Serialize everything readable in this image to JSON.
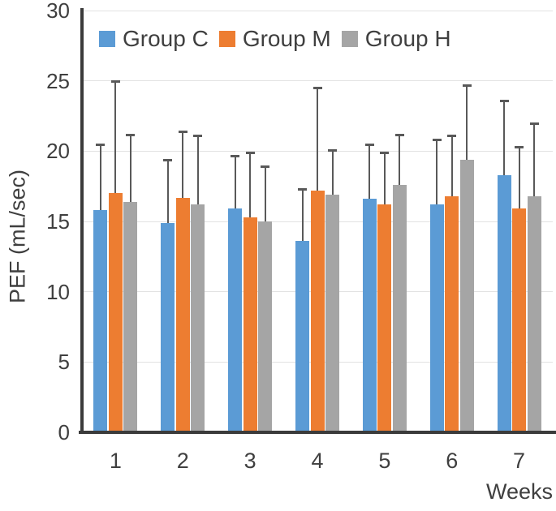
{
  "chart_data": {
    "type": "bar",
    "title": "",
    "xlabel": "Weeks",
    "ylabel": "PEF (mL/sec)",
    "ylim": [
      0,
      30
    ],
    "y_ticks": [
      0,
      5,
      10,
      15,
      20,
      25,
      30
    ],
    "categories": [
      "1",
      "2",
      "3",
      "4",
      "5",
      "6",
      "7"
    ],
    "grid": true,
    "legend_position": "top-inside",
    "error_bars": "upper-only",
    "series": [
      {
        "name": "Group C",
        "color": "#5B9BD5",
        "values": [
          15.8,
          14.9,
          15.9,
          13.6,
          16.6,
          16.2,
          18.3
        ],
        "error_top": [
          20.5,
          19.4,
          19.7,
          17.3,
          20.5,
          20.8,
          23.6
        ]
      },
      {
        "name": "Group M",
        "color": "#ED7D31",
        "values": [
          17.0,
          16.7,
          15.3,
          17.2,
          16.2,
          16.8,
          15.9
        ],
        "error_top": [
          25.0,
          21.4,
          19.9,
          24.5,
          19.9,
          21.1,
          20.3
        ]
      },
      {
        "name": "Group H",
        "color": "#A5A5A5",
        "values": [
          16.4,
          16.2,
          15.0,
          16.9,
          17.6,
          19.4,
          16.8
        ],
        "error_top": [
          21.2,
          21.1,
          18.9,
          20.1,
          21.2,
          24.7,
          22.0
        ]
      }
    ],
    "colors": {
      "axis": "#3b3b3b",
      "gridline": "#e2e2e2",
      "error_bar": "#595959",
      "text": "#3f3f3f"
    }
  }
}
